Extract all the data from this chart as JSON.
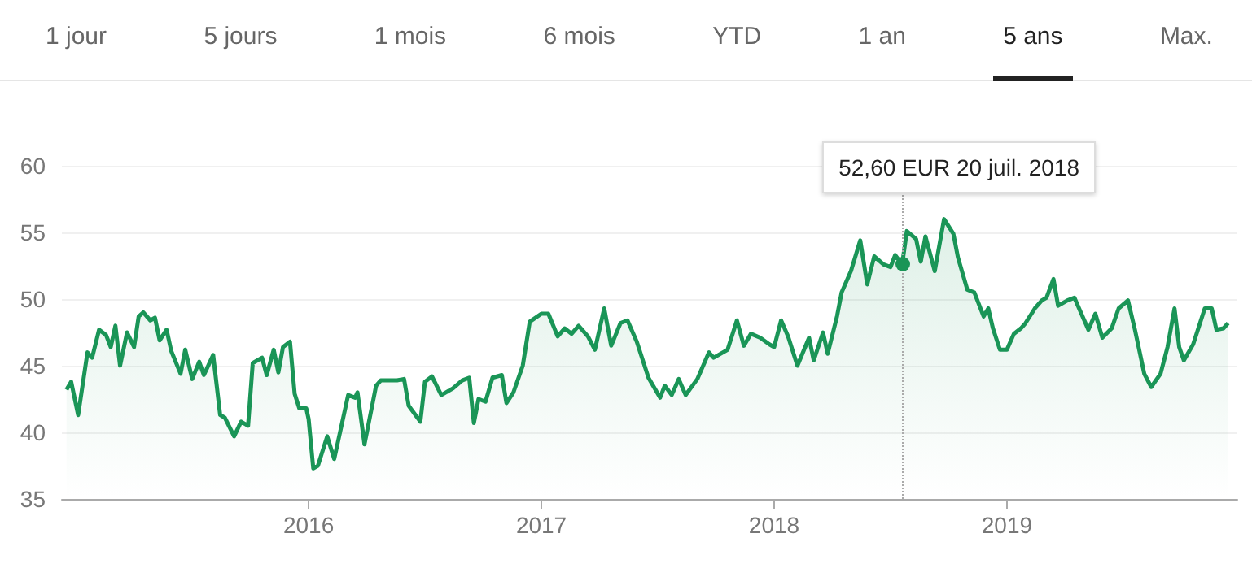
{
  "chart_data": {
    "type": "area",
    "annotations": [
      "1 jour",
      "5 jours",
      "1 mois",
      "6 mois",
      "YTD",
      "1 an",
      "5 ans",
      "Max.",
      "52,60 EUR 20 juil. 2018"
    ],
    "ref_lines": [
      {
        "axis": "x",
        "value": 2018.55,
        "line_style": "dotted",
        "color": "#aaaaaa"
      }
    ],
    "x": [
      2014.96,
      2014.98,
      2015.01,
      2015.05,
      2015.07,
      2015.1,
      2015.13,
      2015.15,
      2015.17,
      2015.19,
      2015.22,
      2015.25,
      2015.27,
      2015.29,
      2015.32,
      2015.34,
      2015.36,
      2015.39,
      2015.41,
      2015.45,
      2015.47,
      2015.5,
      2015.53,
      2015.55,
      2015.59,
      2015.62,
      2015.64,
      2015.68,
      2015.71,
      2015.74,
      2015.76,
      2015.8,
      2015.82,
      2015.85,
      2015.87,
      2015.89,
      2015.92,
      2015.94,
      2015.96,
      2015.99,
      2016.0,
      2016.02,
      2016.04,
      2016.08,
      2016.11,
      2016.17,
      2016.2,
      2016.21,
      2016.24,
      2016.29,
      2016.31,
      2016.34,
      2016.38,
      2016.41,
      2016.43,
      2016.48,
      2016.5,
      2016.53,
      2016.57,
      2016.62,
      2016.66,
      2016.69,
      2016.71,
      2016.73,
      2016.76,
      2016.79,
      2016.83,
      2016.85,
      2016.88,
      2016.92,
      2016.95,
      2017.0,
      2017.03,
      2017.07,
      2017.1,
      2017.13,
      2017.16,
      2017.2,
      2017.23,
      2017.27,
      2017.3,
      2017.34,
      2017.37,
      2017.41,
      2017.46,
      2017.51,
      2017.53,
      2017.56,
      2017.59,
      2017.62,
      2017.67,
      2017.72,
      2017.74,
      2017.8,
      2017.84,
      2017.87,
      2017.9,
      2017.94,
      2017.98,
      2018.0,
      2018.03,
      2018.06,
      2018.1,
      2018.15,
      2018.17,
      2018.21,
      2018.23,
      2018.27,
      2018.29,
      2018.33,
      2018.37,
      2018.4,
      2018.43,
      2018.47,
      2018.5,
      2018.52,
      2018.55,
      2018.57,
      2018.61,
      2018.63,
      2018.65,
      2018.69,
      2018.73,
      2018.77,
      2018.79,
      2018.83,
      2018.86,
      2018.9,
      2018.92,
      2018.94,
      2018.97,
      2019.0,
      2019.03,
      2019.06,
      2019.08,
      2019.12,
      2019.15,
      2019.17,
      2019.2,
      2019.22,
      2019.26,
      2019.29,
      2019.31,
      2019.35,
      2019.38,
      2019.41,
      2019.45,
      2019.48,
      2019.52,
      2019.55,
      2019.59,
      2019.62,
      2019.66,
      2019.69,
      2019.72,
      2019.74,
      2019.76,
      2019.8,
      2019.85,
      2019.88,
      2019.9,
      2019.93,
      2019.95
    ],
    "series": [
      {
        "color": "#1a9557",
        "values": [
          43.2,
          43.8,
          41.3,
          46.0,
          45.6,
          47.7,
          47.3,
          46.4,
          48.0,
          45.0,
          47.5,
          46.4,
          48.7,
          49.0,
          48.4,
          48.6,
          46.9,
          47.7,
          46.1,
          44.4,
          46.2,
          44.0,
          45.3,
          44.3,
          45.8,
          41.3,
          41.1,
          39.7,
          40.8,
          40.5,
          45.2,
          45.6,
          44.3,
          46.2,
          44.5,
          46.4,
          46.8,
          42.9,
          41.8,
          41.8,
          41.0,
          37.3,
          37.5,
          39.7,
          38.0,
          42.8,
          42.6,
          43.0,
          39.1,
          43.5,
          43.9,
          43.9,
          43.9,
          44.0,
          42.0,
          40.8,
          43.8,
          44.2,
          42.8,
          43.3,
          43.9,
          44.1,
          40.7,
          42.5,
          42.3,
          44.1,
          44.3,
          42.2,
          43.0,
          45.0,
          48.3,
          48.9,
          48.9,
          47.2,
          47.8,
          47.4,
          48.0,
          47.2,
          46.2,
          49.3,
          46.5,
          48.2,
          48.4,
          46.8,
          44.1,
          42.6,
          43.5,
          42.8,
          44.0,
          42.8,
          44.0,
          46.0,
          45.6,
          46.2,
          48.4,
          46.5,
          47.4,
          47.1,
          46.6,
          46.4,
          48.4,
          47.2,
          45.0,
          47.1,
          45.4,
          47.5,
          45.9,
          48.7,
          50.5,
          52.1,
          54.4,
          51.1,
          53.2,
          52.6,
          52.4,
          53.3,
          52.6,
          55.1,
          54.5,
          52.8,
          54.7,
          52.1,
          56.0,
          54.9,
          53.1,
          50.7,
          50.5,
          48.7,
          49.3,
          47.8,
          46.2,
          46.2,
          47.4,
          47.8,
          48.2,
          49.3,
          49.9,
          50.1,
          51.5,
          49.5,
          49.9,
          50.1,
          49.3,
          47.7,
          48.9,
          47.1,
          47.8,
          49.3,
          49.9,
          47.7,
          44.4,
          43.4,
          44.4,
          46.4,
          49.3,
          46.4,
          45.4,
          46.6,
          49.3,
          49.3,
          47.7,
          47.8,
          48.2
        ]
      }
    ],
    "xlim": [
      2014.94,
      2019.99
    ],
    "xticks": [
      2016,
      2017,
      2018,
      2019
    ],
    "ylim": [
      35,
      60
    ],
    "yticks": [
      35,
      40,
      45,
      50,
      55,
      60
    ],
    "grid": "y",
    "marker": "none",
    "line_style": "solid"
  }
}
